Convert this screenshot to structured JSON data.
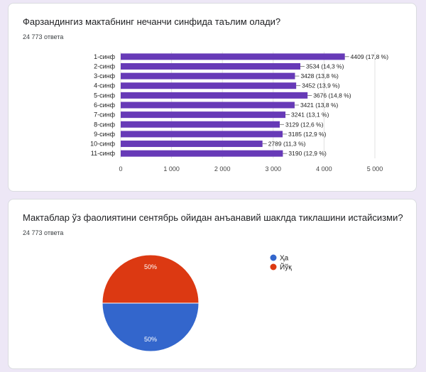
{
  "colors": {
    "bar": "#673ab7",
    "pie_yes": "#3366cc",
    "pie_no": "#dc3912"
  },
  "questions": [
    {
      "title": "Фарзандингиз мактабнинг неча­нчи синфида таълим олади?",
      "responses": "24 773 ответа"
    },
    {
      "title": "Мактаблар ўз фаолиятини сентябрь ойидан анъанавий шаклда тиклашини истайсизми?",
      "responses": "24 773 ответа"
    }
  ],
  "chart_data": [
    {
      "type": "bar",
      "orientation": "horizontal",
      "categories": [
        "1-синф",
        "2-синф",
        "3-синф",
        "4-синф",
        "5-синф",
        "6-синф",
        "7-синф",
        "8-синф",
        "9-синф",
        "10-синф",
        "11-синф"
      ],
      "values": [
        4409,
        3534,
        3428,
        3452,
        3676,
        3421,
        3241,
        3129,
        3185,
        2789,
        3190
      ],
      "data_labels": [
        "4409 (17,8 %)",
        "3534 (14,3 %)",
        "3428 (13,8 %)",
        "3452 (13,9 %)",
        "3676 (14,8 %)",
        "3421 (13,8 %)",
        "3241 (13,1 %)",
        "3129 (12,6 %)",
        "3185 (12,9 %)",
        "2789 (11,3 %)",
        "3190 (12,9 %)"
      ],
      "xlim": [
        0,
        5000
      ],
      "xticks": [
        0,
        1000,
        2000,
        3000,
        4000,
        5000
      ],
      "xtick_labels": [
        "0",
        "1 000",
        "2 000",
        "3 000",
        "4 000",
        "5 000"
      ],
      "grid": true
    },
    {
      "type": "pie",
      "categories": [
        "Ҳа",
        "Йўқ"
      ],
      "values": [
        50,
        50
      ],
      "data_labels": [
        "50%",
        "50%"
      ],
      "legend": "right"
    }
  ]
}
